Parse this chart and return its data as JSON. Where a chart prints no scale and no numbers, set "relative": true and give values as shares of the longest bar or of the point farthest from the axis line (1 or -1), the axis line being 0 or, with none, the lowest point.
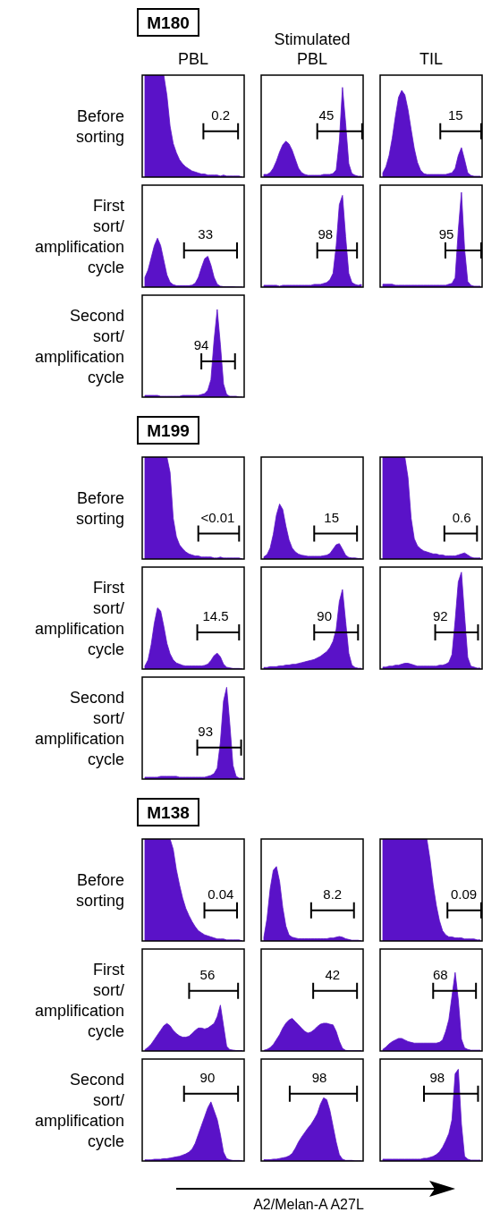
{
  "chart_data": [
    {
      "type": "area",
      "relative": true,
      "title": "M180",
      "subtitle": "PBL",
      "ylabel": "Before sorting",
      "color": "#5a12c8",
      "categories": [
        null,
        null,
        null,
        null,
        null,
        null,
        null,
        null,
        null,
        null,
        null,
        null,
        null,
        null,
        null,
        null,
        null,
        null,
        null,
        null,
        null,
        null,
        null,
        null,
        null,
        null,
        null,
        null,
        null,
        null,
        null,
        null
      ],
      "values": [
        1,
        1,
        1,
        1,
        1,
        1,
        1,
        0.8,
        0.5,
        0.33,
        0.24,
        0.17,
        0.13,
        0.1,
        0.08,
        0.06,
        0.05,
        0.04,
        0.03,
        0.03,
        0.02,
        0.02,
        0.02,
        0.02,
        0.01,
        0.02,
        0.01,
        0.01,
        0.01,
        0.01,
        0.01,
        0
      ],
      "annotations": [
        "0.2"
      ]
    },
    {
      "type": "area",
      "relative": true,
      "subtitle": "Stimulated PBL",
      "color": "#5a12c8",
      "categories": [
        null,
        null,
        null,
        null,
        null,
        null,
        null,
        null,
        null,
        null,
        null,
        null,
        null,
        null,
        null,
        null,
        null,
        null,
        null,
        null,
        null,
        null,
        null,
        null,
        null,
        null,
        null,
        null,
        null,
        null,
        null,
        null
      ],
      "values": [
        0.03,
        0.03,
        0.05,
        0.1,
        0.18,
        0.28,
        0.36,
        0.4,
        0.37,
        0.3,
        0.2,
        0.1,
        0.05,
        0.03,
        0.02,
        0.02,
        0.02,
        0.02,
        0.02,
        0.03,
        0.03,
        0.03,
        0.04,
        0.08,
        0.4,
        1,
        0.6,
        0.15,
        0.04,
        0.02,
        0.01,
        0.01
      ],
      "annotations": [
        "45"
      ]
    },
    {
      "type": "area",
      "relative": true,
      "subtitle": "TIL",
      "color": "#5a12c8",
      "categories": [
        null,
        null,
        null,
        null,
        null,
        null,
        null,
        null,
        null,
        null,
        null,
        null,
        null,
        null,
        null,
        null,
        null,
        null,
        null,
        null,
        null,
        null,
        null,
        null,
        null,
        null,
        null,
        null,
        null,
        null,
        null,
        null
      ],
      "values": [
        0.05,
        0.12,
        0.25,
        0.45,
        0.7,
        0.92,
        1,
        0.95,
        0.78,
        0.55,
        0.33,
        0.17,
        0.08,
        0.04,
        0.03,
        0.03,
        0.03,
        0.03,
        0.03,
        0.03,
        0.03,
        0.04,
        0.05,
        0.1,
        0.25,
        0.34,
        0.2,
        0.05,
        0.02,
        0.01,
        0.01,
        0.01
      ],
      "annotations": [
        "15"
      ]
    },
    {
      "type": "area",
      "relative": true,
      "ylabel": "First sort/ amplification cycle",
      "color": "#5a12c8",
      "categories": [
        null,
        null,
        null,
        null,
        null,
        null,
        null,
        null,
        null,
        null,
        null,
        null,
        null,
        null,
        null,
        null,
        null,
        null,
        null,
        null,
        null,
        null,
        null,
        null,
        null,
        null,
        null,
        null,
        null,
        null,
        null,
        null
      ],
      "values": [
        0.2,
        0.35,
        0.6,
        0.85,
        1,
        0.85,
        0.55,
        0.25,
        0.1,
        0.05,
        0.03,
        0.03,
        0.03,
        0.03,
        0.03,
        0.04,
        0.08,
        0.2,
        0.4,
        0.58,
        0.63,
        0.45,
        0.2,
        0.06,
        0.02,
        0.01,
        0.01,
        0.01,
        0.01,
        0,
        0,
        0
      ],
      "annotations": [
        "33"
      ]
    },
    {
      "type": "area",
      "relative": true,
      "color": "#5a12c8",
      "categories": [
        null,
        null,
        null,
        null,
        null,
        null,
        null,
        null,
        null,
        null,
        null,
        null,
        null,
        null,
        null,
        null,
        null,
        null,
        null,
        null,
        null,
        null,
        null,
        null,
        null,
        null,
        null,
        null,
        null,
        null,
        null,
        null
      ],
      "values": [
        0.02,
        0.02,
        0.02,
        0.02,
        0.02,
        0.01,
        0.02,
        0.02,
        0.02,
        0.02,
        0.02,
        0.02,
        0.02,
        0.02,
        0.02,
        0.02,
        0.03,
        0.03,
        0.03,
        0.04,
        0.05,
        0.08,
        0.15,
        0.45,
        0.9,
        1,
        0.55,
        0.15,
        0.05,
        0.03,
        0.02,
        0.03
      ],
      "annotations": [
        "98"
      ]
    },
    {
      "type": "area",
      "relative": true,
      "color": "#5a12c8",
      "categories": [
        null,
        null,
        null,
        null,
        null,
        null,
        null,
        null,
        null,
        null,
        null,
        null,
        null,
        null,
        null,
        null,
        null,
        null,
        null,
        null,
        null,
        null,
        null,
        null,
        null,
        null,
        null,
        null,
        null,
        null,
        null,
        null
      ],
      "values": [
        0.03,
        0.03,
        0.03,
        0.03,
        0.02,
        0.02,
        0.02,
        0.02,
        0.02,
        0.02,
        0.02,
        0.02,
        0.02,
        0.02,
        0.02,
        0.02,
        0.02,
        0.02,
        0.02,
        0.02,
        0.02,
        0.03,
        0.04,
        0.1,
        0.6,
        1,
        0.4,
        0.06,
        0.02,
        0.01,
        0.01,
        0.01
      ],
      "annotations": [
        "95"
      ]
    },
    {
      "type": "area",
      "relative": true,
      "ylabel": "Second sort/ amplification cycle",
      "color": "#5a12c8",
      "categories": [
        null,
        null,
        null,
        null,
        null,
        null,
        null,
        null,
        null,
        null,
        null,
        null,
        null,
        null,
        null,
        null,
        null,
        null,
        null,
        null,
        null,
        null,
        null,
        null,
        null,
        null,
        null,
        null,
        null,
        null,
        null,
        null
      ],
      "values": [
        0.02,
        0.02,
        0.02,
        0.02,
        0.02,
        0.01,
        0.01,
        0.01,
        0.01,
        0.01,
        0.01,
        0.01,
        0.02,
        0.02,
        0.02,
        0.02,
        0.02,
        0.02,
        0.03,
        0.04,
        0.08,
        0.2,
        0.65,
        1,
        0.6,
        0.15,
        0.03,
        0.01,
        0.01,
        0.01,
        0,
        0
      ],
      "annotations": [
        "94"
      ]
    },
    {
      "type": "area",
      "relative": true,
      "title": "M199",
      "ylabel": "Before sorting",
      "color": "#5a12c8",
      "categories": [
        null,
        null,
        null,
        null,
        null,
        null,
        null,
        null,
        null,
        null,
        null,
        null,
        null,
        null,
        null,
        null,
        null,
        null,
        null,
        null,
        null,
        null,
        null,
        null,
        null,
        null,
        null,
        null,
        null,
        null,
        null,
        null
      ],
      "values": [
        1,
        1,
        1,
        1,
        1,
        1,
        1,
        1,
        0.85,
        0.4,
        0.22,
        0.14,
        0.1,
        0.07,
        0.05,
        0.04,
        0.03,
        0.03,
        0.02,
        0.02,
        0.02,
        0.02,
        0.01,
        0.01,
        0.02,
        0.01,
        0.01,
        0.01,
        0.01,
        0.01,
        0.01,
        0
      ],
      "annotations": [
        "<0.01"
      ]
    },
    {
      "type": "area",
      "relative": true,
      "color": "#5a12c8",
      "categories": [
        null,
        null,
        null,
        null,
        null,
        null,
        null,
        null,
        null,
        null,
        null,
        null,
        null,
        null,
        null,
        null,
        null,
        null,
        null,
        null,
        null,
        null,
        null,
        null,
        null,
        null,
        null,
        null,
        null,
        null,
        null,
        null
      ],
      "values": [
        0.04,
        0.08,
        0.2,
        0.45,
        0.8,
        1,
        0.9,
        0.6,
        0.35,
        0.2,
        0.13,
        0.09,
        0.07,
        0.06,
        0.05,
        0.05,
        0.05,
        0.05,
        0.05,
        0.06,
        0.07,
        0.1,
        0.18,
        0.26,
        0.28,
        0.18,
        0.07,
        0.03,
        0.02,
        0.02,
        0.01,
        0.01
      ],
      "annotations": [
        "15"
      ]
    },
    {
      "type": "area",
      "relative": true,
      "color": "#5a12c8",
      "categories": [
        null,
        null,
        null,
        null,
        null,
        null,
        null,
        null,
        null,
        null,
        null,
        null,
        null,
        null,
        null,
        null,
        null,
        null,
        null,
        null,
        null,
        null,
        null,
        null,
        null,
        null,
        null,
        null,
        null,
        null,
        null,
        null
      ],
      "values": [
        1,
        1,
        1,
        1,
        1,
        1,
        1,
        1,
        0.8,
        0.4,
        0.2,
        0.13,
        0.1,
        0.08,
        0.07,
        0.06,
        0.05,
        0.05,
        0.04,
        0.04,
        0.03,
        0.03,
        0.03,
        0.03,
        0.04,
        0.05,
        0.06,
        0.04,
        0.02,
        0.01,
        0.01,
        0.01
      ],
      "annotations": [
        "0.6"
      ]
    },
    {
      "type": "area",
      "relative": true,
      "ylabel": "First sort/ amplification cycle",
      "color": "#5a12c8",
      "categories": [
        null,
        null,
        null,
        null,
        null,
        null,
        null,
        null,
        null,
        null,
        null,
        null,
        null,
        null,
        null,
        null,
        null,
        null,
        null,
        null,
        null,
        null,
        null,
        null,
        null,
        null,
        null,
        null,
        null,
        null,
        null,
        null
      ],
      "values": [
        0.05,
        0.15,
        0.4,
        0.75,
        1,
        0.95,
        0.7,
        0.42,
        0.25,
        0.15,
        0.1,
        0.08,
        0.06,
        0.05,
        0.05,
        0.05,
        0.05,
        0.05,
        0.05,
        0.06,
        0.08,
        0.14,
        0.22,
        0.26,
        0.2,
        0.08,
        0.03,
        0.02,
        0.01,
        0.01,
        0.01,
        0
      ],
      "annotations": [
        "14.5"
      ]
    },
    {
      "type": "area",
      "relative": true,
      "color": "#5a12c8",
      "categories": [
        null,
        null,
        null,
        null,
        null,
        null,
        null,
        null,
        null,
        null,
        null,
        null,
        null,
        null,
        null,
        null,
        null,
        null,
        null,
        null,
        null,
        null,
        null,
        null,
        null,
        null,
        null,
        null,
        null,
        null,
        null,
        null
      ],
      "values": [
        0.02,
        0.02,
        0.03,
        0.03,
        0.03,
        0.04,
        0.04,
        0.05,
        0.05,
        0.06,
        0.06,
        0.07,
        0.08,
        0.09,
        0.1,
        0.11,
        0.12,
        0.14,
        0.16,
        0.19,
        0.22,
        0.27,
        0.35,
        0.5,
        0.85,
        1,
        0.6,
        0.2,
        0.05,
        0.02,
        0.01,
        0.01
      ],
      "annotations": [
        "90"
      ]
    },
    {
      "type": "area",
      "relative": true,
      "color": "#5a12c8",
      "categories": [
        null,
        null,
        null,
        null,
        null,
        null,
        null,
        null,
        null,
        null,
        null,
        null,
        null,
        null,
        null,
        null,
        null,
        null,
        null,
        null,
        null,
        null,
        null,
        null,
        null,
        null,
        null,
        null,
        null,
        null,
        null,
        null
      ],
      "values": [
        0.02,
        0.02,
        0.03,
        0.03,
        0.04,
        0.04,
        0.05,
        0.06,
        0.06,
        0.05,
        0.04,
        0.03,
        0.03,
        0.03,
        0.03,
        0.03,
        0.03,
        0.03,
        0.04,
        0.04,
        0.05,
        0.07,
        0.15,
        0.5,
        0.9,
        1,
        0.55,
        0.12,
        0.03,
        0.02,
        0.01,
        0.01
      ],
      "annotations": [
        "92"
      ]
    },
    {
      "type": "area",
      "relative": true,
      "ylabel": "Second sort/ amplification cycle",
      "color": "#5a12c8",
      "categories": [
        null,
        null,
        null,
        null,
        null,
        null,
        null,
        null,
        null,
        null,
        null,
        null,
        null,
        null,
        null,
        null,
        null,
        null,
        null,
        null,
        null,
        null,
        null,
        null,
        null,
        null,
        null,
        null,
        null,
        null,
        null,
        null
      ],
      "values": [
        0.02,
        0.02,
        0.02,
        0.02,
        0.02,
        0.03,
        0.03,
        0.03,
        0.03,
        0.03,
        0.03,
        0.02,
        0.02,
        0.02,
        0.02,
        0.02,
        0.02,
        0.02,
        0.02,
        0.02,
        0.03,
        0.04,
        0.06,
        0.12,
        0.4,
        0.85,
        1,
        0.6,
        0.15,
        0.03,
        0.01,
        0.01
      ],
      "annotations": [
        "93"
      ]
    },
    {
      "type": "area",
      "relative": true,
      "title": "M138",
      "ylabel": "Before sorting",
      "color": "#5a12c8",
      "categories": [
        null,
        null,
        null,
        null,
        null,
        null,
        null,
        null,
        null,
        null,
        null,
        null,
        null,
        null,
        null,
        null,
        null,
        null,
        null,
        null,
        null,
        null,
        null,
        null,
        null,
        null,
        null,
        null,
        null,
        null,
        null,
        null
      ],
      "values": [
        1,
        1,
        1,
        1,
        1,
        1,
        1,
        1,
        1,
        0.9,
        0.7,
        0.55,
        0.42,
        0.32,
        0.25,
        0.19,
        0.14,
        0.1,
        0.08,
        0.06,
        0.05,
        0.04,
        0.03,
        0.02,
        0.02,
        0.02,
        0.01,
        0.01,
        0.01,
        0.01,
        0.01,
        0
      ],
      "annotations": [
        "0.04"
      ]
    },
    {
      "type": "area",
      "relative": true,
      "color": "#5a12c8",
      "categories": [
        null,
        null,
        null,
        null,
        null,
        null,
        null,
        null,
        null,
        null,
        null,
        null,
        null,
        null,
        null,
        null,
        null,
        null,
        null,
        null,
        null,
        null,
        null,
        null,
        null,
        null,
        null,
        null,
        null,
        null,
        null,
        null
      ],
      "values": [
        0.05,
        0.3,
        0.7,
        0.95,
        1,
        0.8,
        0.45,
        0.2,
        0.08,
        0.05,
        0.04,
        0.03,
        0.03,
        0.03,
        0.03,
        0.03,
        0.03,
        0.03,
        0.03,
        0.03,
        0.03,
        0.04,
        0.04,
        0.05,
        0.06,
        0.05,
        0.03,
        0.02,
        0.01,
        0.01,
        0.01,
        0
      ],
      "annotations": [
        "8.2"
      ]
    },
    {
      "type": "area",
      "relative": true,
      "color": "#5a12c8",
      "categories": [
        null,
        null,
        null,
        null,
        null,
        null,
        null,
        null,
        null,
        null,
        null,
        null,
        null,
        null,
        null,
        null,
        null,
        null,
        null,
        null,
        null,
        null,
        null,
        null,
        null,
        null,
        null,
        null,
        null,
        null,
        null,
        null
      ],
      "values": [
        1,
        1,
        1,
        1,
        1,
        1,
        1,
        1,
        1,
        1,
        1,
        1,
        1,
        1,
        1,
        0.8,
        0.55,
        0.35,
        0.2,
        0.1,
        0.06,
        0.04,
        0.04,
        0.03,
        0.03,
        0.03,
        0.02,
        0.02,
        0.02,
        0.02,
        0.01,
        0.01
      ],
      "annotations": [
        "0.09"
      ]
    },
    {
      "type": "area",
      "relative": true,
      "ylabel": "First sort/ amplification cycle",
      "color": "#5a12c8",
      "categories": [
        null,
        null,
        null,
        null,
        null,
        null,
        null,
        null,
        null,
        null,
        null,
        null,
        null,
        null,
        null,
        null,
        null,
        null,
        null,
        null,
        null,
        null,
        null,
        null,
        null,
        null,
        null,
        null,
        null,
        null,
        null,
        null
      ],
      "values": [
        0.03,
        0.08,
        0.15,
        0.25,
        0.35,
        0.45,
        0.55,
        0.6,
        0.55,
        0.45,
        0.38,
        0.33,
        0.3,
        0.3,
        0.32,
        0.38,
        0.45,
        0.5,
        0.5,
        0.48,
        0.5,
        0.55,
        0.6,
        0.75,
        1,
        0.55,
        0.1,
        0.03,
        0.02,
        0.01,
        0.01,
        0.01
      ],
      "annotations": [
        "56"
      ]
    },
    {
      "type": "area",
      "relative": true,
      "color": "#5a12c8",
      "categories": [
        null,
        null,
        null,
        null,
        null,
        null,
        null,
        null,
        null,
        null,
        null,
        null,
        null,
        null,
        null,
        null,
        null,
        null,
        null,
        null,
        null,
        null,
        null,
        null,
        null,
        null,
        null,
        null,
        null,
        null,
        null,
        null
      ],
      "values": [
        0.02,
        0.05,
        0.1,
        0.2,
        0.35,
        0.5,
        0.7,
        0.85,
        0.95,
        1,
        0.9,
        0.8,
        0.7,
        0.6,
        0.55,
        0.58,
        0.65,
        0.75,
        0.82,
        0.85,
        0.85,
        0.82,
        0.8,
        0.6,
        0.3,
        0.08,
        0.02,
        0.01,
        0.01,
        0.01,
        0.01,
        0.01
      ],
      "annotations": [
        "42"
      ]
    },
    {
      "type": "area",
      "relative": true,
      "color": "#5a12c8",
      "categories": [
        null,
        null,
        null,
        null,
        null,
        null,
        null,
        null,
        null,
        null,
        null,
        null,
        null,
        null,
        null,
        null,
        null,
        null,
        null,
        null,
        null,
        null,
        null,
        null,
        null,
        null,
        null,
        null,
        null,
        null,
        null,
        null
      ],
      "values": [
        0.02,
        0.05,
        0.09,
        0.12,
        0.14,
        0.16,
        0.16,
        0.14,
        0.12,
        0.11,
        0.1,
        0.1,
        0.1,
        0.1,
        0.1,
        0.1,
        0.1,
        0.1,
        0.11,
        0.14,
        0.25,
        0.4,
        0.7,
        1,
        0.65,
        0.15,
        0.04,
        0.02,
        0.01,
        0.01,
        0.01,
        0.01
      ],
      "annotations": [
        "68"
      ]
    },
    {
      "type": "area",
      "relative": true,
      "ylabel": "Second sort/ amplification cycle",
      "color": "#5a12c8",
      "categories": [
        null,
        null,
        null,
        null,
        null,
        null,
        null,
        null,
        null,
        null,
        null,
        null,
        null,
        null,
        null,
        null,
        null,
        null,
        null,
        null,
        null,
        null,
        null,
        null,
        null,
        null,
        null,
        null,
        null,
        null,
        null,
        null
      ],
      "values": [
        0.02,
        0.02,
        0.02,
        0.03,
        0.03,
        0.03,
        0.04,
        0.04,
        0.05,
        0.06,
        0.07,
        0.08,
        0.1,
        0.12,
        0.15,
        0.2,
        0.3,
        0.45,
        0.6,
        0.75,
        0.9,
        1,
        0.85,
        0.7,
        0.45,
        0.15,
        0.04,
        0.02,
        0.01,
        0.01,
        0.01,
        0
      ],
      "annotations": [
        "90"
      ]
    },
    {
      "type": "area",
      "relative": true,
      "color": "#5a12c8",
      "categories": [
        null,
        null,
        null,
        null,
        null,
        null,
        null,
        null,
        null,
        null,
        null,
        null,
        null,
        null,
        null,
        null,
        null,
        null,
        null,
        null,
        null,
        null,
        null,
        null,
        null,
        null,
        null,
        null,
        null,
        null,
        null,
        null
      ],
      "values": [
        0.02,
        0.02,
        0.02,
        0.03,
        0.03,
        0.04,
        0.05,
        0.06,
        0.08,
        0.12,
        0.2,
        0.3,
        0.38,
        0.45,
        0.52,
        0.58,
        0.66,
        0.75,
        0.9,
        1,
        0.97,
        0.8,
        0.55,
        0.3,
        0.1,
        0.03,
        0.01,
        0.01,
        0.01,
        0,
        0,
        0
      ],
      "annotations": [
        "98"
      ]
    },
    {
      "type": "area",
      "relative": true,
      "xlabel": "A2/Melan-A A27L",
      "color": "#5a12c8",
      "categories": [
        null,
        null,
        null,
        null,
        null,
        null,
        null,
        null,
        null,
        null,
        null,
        null,
        null,
        null,
        null,
        null,
        null,
        null,
        null,
        null,
        null,
        null,
        null,
        null,
        null,
        null,
        null,
        null,
        null,
        null,
        null,
        null
      ],
      "values": [
        0.02,
        0.02,
        0.02,
        0.02,
        0.02,
        0.02,
        0.02,
        0.02,
        0.02,
        0.02,
        0.02,
        0.02,
        0.02,
        0.03,
        0.03,
        0.04,
        0.05,
        0.07,
        0.1,
        0.15,
        0.22,
        0.3,
        0.45,
        0.95,
        1,
        0.4,
        0.05,
        0.02,
        0.01,
        0.01,
        0.01,
        0.01
      ],
      "annotations": [
        "98"
      ]
    }
  ]
}
